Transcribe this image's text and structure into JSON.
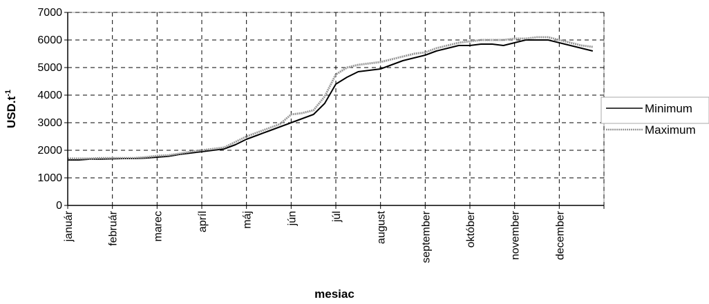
{
  "chart_data": {
    "type": "line",
    "xlabel": "mesiac",
    "ylabel_main": "USD.t",
    "ylabel_sup": "-1",
    "ylim": [
      0,
      7000
    ],
    "yticks": [
      0,
      1000,
      2000,
      3000,
      4000,
      5000,
      6000,
      7000
    ],
    "grid": true,
    "legend_position": "right",
    "categories": [
      "január",
      "február",
      "marec",
      "apríl",
      "máj",
      "jún",
      "júl",
      "august",
      "september",
      "október",
      "november",
      "december"
    ],
    "x": [
      0,
      0.25,
      0.5,
      0.75,
      1,
      1.25,
      1.5,
      1.75,
      2,
      2.25,
      2.5,
      2.75,
      3,
      3.25,
      3.5,
      3.75,
      4,
      4.25,
      4.5,
      4.75,
      5,
      5.25,
      5.5,
      5.75,
      6,
      6.25,
      6.5,
      6.75,
      7,
      7.25,
      7.5,
      7.75,
      8,
      8.25,
      8.5,
      8.75,
      9,
      9.25,
      9.5,
      9.75,
      10,
      10.25,
      10.5,
      10.75,
      11,
      11.25,
      11.5,
      11.75
    ],
    "series": [
      {
        "name": "Minimum",
        "color": "#000000",
        "values": [
          1650,
          1650,
          1680,
          1680,
          1690,
          1700,
          1700,
          1720,
          1750,
          1780,
          1850,
          1900,
          1950,
          2000,
          2050,
          2200,
          2400,
          2550,
          2700,
          2850,
          3000,
          3150,
          3300,
          3700,
          4400,
          4650,
          4850,
          4900,
          4950,
          5100,
          5250,
          5350,
          5450,
          5600,
          5700,
          5800,
          5800,
          5850,
          5850,
          5800,
          5900,
          6000,
          6000,
          6000,
          5900,
          5800,
          5700,
          5600
        ]
      },
      {
        "name": "Maximum",
        "color": "#9a9a9a",
        "values": [
          1700,
          1700,
          1700,
          1720,
          1720,
          1720,
          1720,
          1750,
          1800,
          1820,
          1880,
          1950,
          2000,
          2050,
          2100,
          2300,
          2500,
          2650,
          2800,
          2950,
          3300,
          3350,
          3450,
          3950,
          4750,
          5000,
          5100,
          5150,
          5200,
          5300,
          5400,
          5500,
          5550,
          5700,
          5800,
          5900,
          5950,
          6000,
          6000,
          6000,
          6050,
          6050,
          6100,
          6100,
          6000,
          5900,
          5800,
          5750
        ]
      }
    ]
  }
}
